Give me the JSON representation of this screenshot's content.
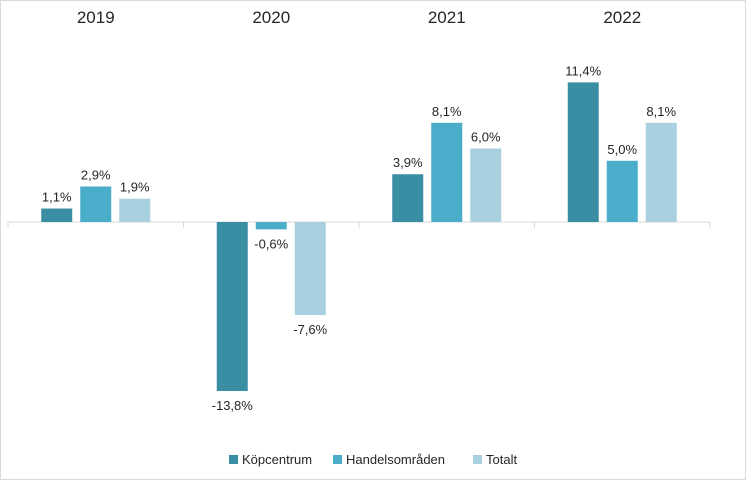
{
  "chart_data": {
    "type": "bar",
    "categories": [
      "2019",
      "2020",
      "2021",
      "2022"
    ],
    "series": [
      {
        "name": "Köpcentrum",
        "values": [
          1.1,
          -13.8,
          3.9,
          11.4
        ],
        "labels": [
          "1,1%",
          "-13,8%",
          "3,9%",
          "11,4%"
        ],
        "color": "#3a8ea4"
      },
      {
        "name": "Handelsområden",
        "values": [
          2.9,
          -0.6,
          8.1,
          5.0
        ],
        "labels": [
          "2,9%",
          "-0,6%",
          "8,1%",
          "5,0%"
        ],
        "color": "#4aaecb"
      },
      {
        "name": "Totalt",
        "values": [
          1.9,
          -7.6,
          6.0,
          8.1
        ],
        "labels": [
          "1,9%",
          "-7,6%",
          "6,0%",
          "8,1%"
        ],
        "color": "#a9d0df"
      }
    ],
    "category_axis_position": "top",
    "legend_position": "bottom",
    "grid": false,
    "ylim": [
      -15,
      13
    ]
  }
}
